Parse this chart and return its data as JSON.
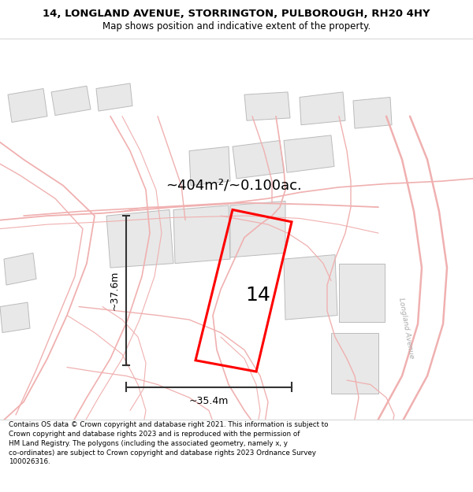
{
  "title_line1": "14, LONGLAND AVENUE, STORRINGTON, PULBOROUGH, RH20 4HY",
  "title_line2": "Map shows position and indicative extent of the property.",
  "area_text": "~404m²/~0.100ac.",
  "label_number": "14",
  "dim_height": "~37.6m",
  "dim_width": "~35.4m",
  "road_label": "Longland Avenue",
  "footer_text": "Contains OS data © Crown copyright and database right 2021. This information is subject to Crown copyright and database rights 2023 and is reproduced with the permission of HM Land Registry. The polygons (including the associated geometry, namely x, y co-ordinates) are subject to Crown copyright and database rights 2023 Ordnance Survey 100026316.",
  "map_bg": "#ffffff",
  "road_color": "#f0b0b0",
  "building_fill": "#e8e8e8",
  "building_edge": "#bbbbbb",
  "plot_color": "#ff0000",
  "dim_color": "#333333",
  "text_color": "#000000",
  "road_label_color": "#aaaaaa",
  "title_fontsize": 9.5,
  "subtitle_fontsize": 8.5,
  "area_fontsize": 13,
  "num_fontsize": 18,
  "dim_fontsize": 9,
  "footer_fontsize": 6.3,
  "road_label_fontsize": 6.5
}
